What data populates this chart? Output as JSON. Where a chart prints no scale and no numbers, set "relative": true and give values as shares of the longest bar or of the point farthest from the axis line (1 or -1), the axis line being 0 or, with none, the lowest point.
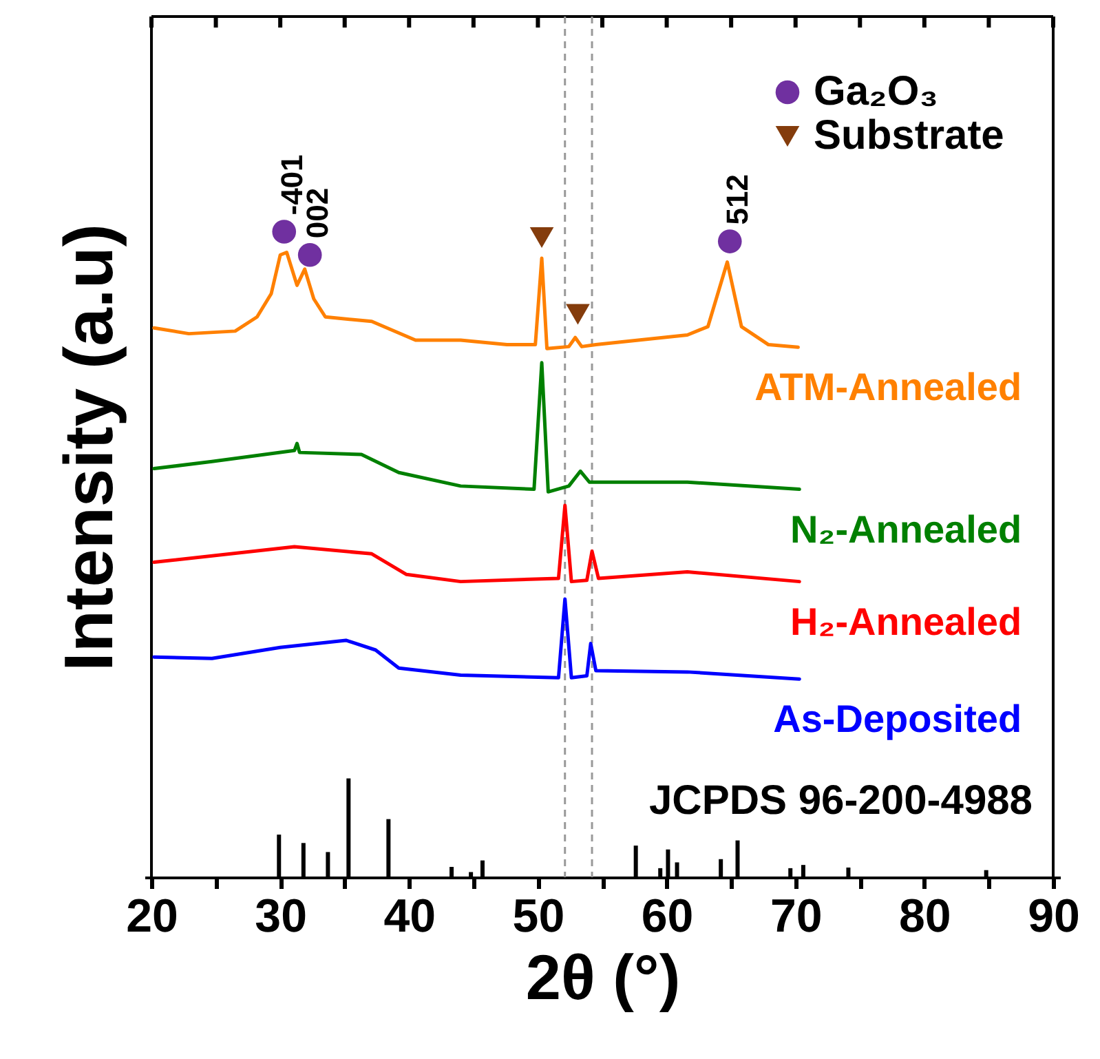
{
  "chart_data": {
    "type": "line",
    "relative": true,
    "xlabel": "2θ (°)",
    "ylabel": "Intensity (a.u)",
    "xlim": [
      20,
      90
    ],
    "xticks": [
      20,
      {
        "value": 25,
        "label": null
      },
      30,
      {
        "value": 35,
        "label": null
      },
      40,
      {
        "value": 45,
        "label": null
      },
      50,
      {
        "value": 55,
        "label": null
      },
      60,
      {
        "value": 65,
        "label": null
      },
      70,
      {
        "value": 75,
        "label": null
      },
      80,
      {
        "value": 85,
        "label": null
      },
      90
    ],
    "legend": "top right",
    "line_style": "solid",
    "series": [
      {
        "name": "ATM-Annealed",
        "color": "#ff8000",
        "x": [
          20.2,
          22.9,
          26.5,
          28.2,
          29.3,
          30.0,
          30.5,
          31.3,
          31.9,
          32.6,
          33.5,
          37.1,
          40.5,
          44.0,
          47.6,
          49.8,
          50.3,
          50.7,
          52.4,
          52.9,
          53.4,
          54.5,
          61.6,
          63.2,
          64.7,
          65.8,
          67.9,
          70.2
        ],
        "values": [
          0.851,
          0.842,
          0.846,
          0.868,
          0.904,
          0.964,
          0.968,
          0.917,
          0.942,
          0.896,
          0.868,
          0.861,
          0.832,
          0.832,
          0.825,
          0.825,
          0.959,
          0.819,
          0.822,
          0.836,
          0.822,
          0.825,
          0.84,
          0.853,
          0.953,
          0.853,
          0.825,
          0.821
        ]
      },
      {
        "name": "N₂-Annealed",
        "color": "#008000",
        "x": [
          20.2,
          24.7,
          31.1,
          31.3,
          31.5,
          36.3,
          39.2,
          44.0,
          49.7,
          50.3,
          50.8,
          52.4,
          53.3,
          54.0,
          61.6,
          70.3
        ],
        "values": [
          0.633,
          0.644,
          0.661,
          0.672,
          0.658,
          0.655,
          0.627,
          0.606,
          0.601,
          0.797,
          0.597,
          0.606,
          0.629,
          0.612,
          0.612,
          0.601
        ]
      },
      {
        "name": "H₂-Annealed",
        "color": "#ff0000",
        "x": [
          20.2,
          31.1,
          37.1,
          39.8,
          44.0,
          51.6,
          52.1,
          52.6,
          53.8,
          54.2,
          54.7,
          61.6,
          70.3
        ],
        "values": [
          0.488,
          0.512,
          0.501,
          0.469,
          0.458,
          0.463,
          0.576,
          0.458,
          0.46,
          0.505,
          0.463,
          0.473,
          0.458
        ]
      },
      {
        "name": "As-Deposited",
        "color": "#0000ff",
        "x": [
          20.2,
          24.7,
          30.0,
          35.1,
          37.4,
          39.2,
          44.0,
          51.6,
          52.1,
          52.6,
          53.8,
          54.1,
          54.5,
          61.6,
          70.3
        ],
        "values": [
          0.341,
          0.339,
          0.356,
          0.367,
          0.352,
          0.324,
          0.313,
          0.309,
          0.431,
          0.309,
          0.312,
          0.362,
          0.32,
          0.318,
          0.307
        ]
      },
      {
        "type": "bar",
        "color": "#000000",
        "x": [
          29.9,
          31.8,
          33.7,
          35.3,
          38.4,
          43.3,
          44.8,
          45.7,
          57.6,
          59.5,
          60.1,
          60.8,
          64.2,
          65.5,
          69.6,
          70.6,
          74.1,
          84.8
        ],
        "values": [
          0.066,
          0.053,
          0.039,
          0.153,
          0.09,
          0.016,
          0.008,
          0.026,
          0.049,
          0.014,
          0.043,
          0.023,
          0.028,
          0.057,
          0.014,
          0.019,
          0.015,
          0.011
        ]
      },
      {
        "type": "scatter",
        "name": "Ga₂O₃",
        "color": "#7030a0",
        "marker": "circle",
        "x": [
          30.3,
          32.3,
          64.9
        ],
        "values": [
          1,
          0.964,
          0.985
        ]
      },
      {
        "type": "scatter",
        "name": "Substrate",
        "color": "#843c0c",
        "marker": "triangle",
        "x": [
          50.3,
          53.1
        ],
        "values": [
          0.991,
          0.872
        ]
      }
    ],
    "ref_lines": [
      {
        "axis": "x",
        "value": 52.1,
        "color": "#999999",
        "line_style": "dashed"
      },
      {
        "axis": "x",
        "value": 54.2,
        "color": "#999999",
        "line_style": "dashed"
      }
    ],
    "annotations": [
      {
        "text": "-401",
        "x": 30.3,
        "y": 1
      },
      {
        "text": "002",
        "x": 32.3,
        "y": 0.964
      },
      {
        "text": "512",
        "x": 64.9,
        "y": 0.985
      },
      "JCPDS 96-200-4988"
    ]
  }
}
